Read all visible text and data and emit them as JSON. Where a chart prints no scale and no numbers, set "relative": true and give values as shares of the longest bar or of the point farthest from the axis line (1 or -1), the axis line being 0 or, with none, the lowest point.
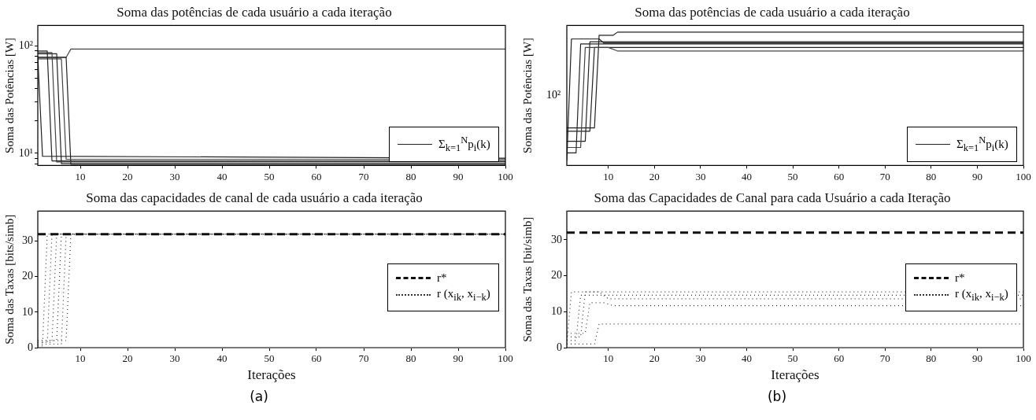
{
  "chart_data": [
    {
      "type": "line",
      "title": "Soma das potências de cada usuário a cada iteração",
      "ylabel": "Soma das Potências [W]",
      "xlim": [
        1,
        100
      ],
      "xticks": [
        10,
        20,
        30,
        40,
        50,
        60,
        70,
        80,
        90,
        100
      ],
      "ylim": [
        7.7,
        156
      ],
      "yticks": [
        {
          "value": 8,
          "label": null
        },
        {
          "value": 9,
          "label": null
        },
        {
          "value": 10,
          "label": "10¹"
        },
        {
          "value": 20,
          "label": null
        },
        {
          "value": 30,
          "label": null
        },
        {
          "value": 40,
          "label": null
        },
        {
          "value": 50,
          "label": null
        },
        {
          "value": 60,
          "label": null
        },
        {
          "value": 70,
          "label": null
        },
        {
          "value": 80,
          "label": null
        },
        {
          "value": 90,
          "label": null
        },
        {
          "value": 100,
          "label": "10²"
        }
      ],
      "log": true,
      "legend": "bottom right",
      "series": [
        {
          "name": "Σ$_{k=1}$$^{N}$p$_{i}$(k)",
          "color": "#222222",
          "x": [
            1,
            2,
            100
          ],
          "values": [
            81,
            9.4,
            9.0
          ]
        },
        {
          "color": "#222222",
          "x": [
            1,
            3,
            4,
            100
          ],
          "values": [
            90,
            90,
            8.5,
            8.5
          ]
        },
        {
          "color": "#444444",
          "x": [
            1,
            4,
            5,
            100
          ],
          "values": [
            87,
            87,
            8.3,
            8.3
          ]
        },
        {
          "color": "#222222",
          "x": [
            1,
            5,
            6,
            100
          ],
          "values": [
            85,
            85,
            8.0,
            8.0
          ]
        },
        {
          "color": "#444444",
          "x": [
            1,
            6,
            7,
            100
          ],
          "values": [
            76,
            76,
            8.8,
            8.8
          ]
        },
        {
          "color": "#222222",
          "x": [
            1,
            7,
            8,
            100
          ],
          "values": [
            78.6,
            78.6,
            7.9,
            7.9
          ]
        },
        {
          "color": "#444444",
          "x": [
            1,
            7,
            8,
            100
          ],
          "values": [
            78.6,
            78.6,
            94,
            94
          ]
        }
      ]
    },
    {
      "type": "line",
      "title": "Soma das potências de cada usuário a cada iteração",
      "ylabel": "Soma das Potências [W]",
      "xlim": [
        1,
        100
      ],
      "xticks": [
        10,
        20,
        30,
        40,
        50,
        60,
        70,
        80,
        90,
        100
      ],
      "relative": true,
      "legend": "bottom right",
      "annotations": [
        "10²"
      ],
      "series": [
        {
          "name": "Σ$_{k=1}$$^{N}$p$_{i}$(k)",
          "color": "#222222",
          "x": [
            1,
            2,
            8,
            9,
            100
          ],
          "values": [
            0.035,
            0.949,
            0.949,
            0.919,
            0.919
          ]
        },
        {
          "color": "#222222",
          "x": [
            1,
            3,
            4,
            100
          ],
          "values": [
            0.094,
            0.094,
            0.911,
            0.911
          ]
        },
        {
          "color": "#444444",
          "x": [
            1,
            4,
            5,
            10,
            12,
            100
          ],
          "values": [
            0.135,
            0.135,
            0.885,
            0.885,
            0.859,
            0.859
          ]
        },
        {
          "color": "#222222",
          "x": [
            1,
            5,
            6,
            100
          ],
          "values": [
            0.182,
            0.182,
            0.928,
            0.928
          ]
        },
        {
          "color": "#222222",
          "x": [
            1,
            6,
            7,
            100
          ],
          "values": [
            0.257,
            0.257,
            0.885,
            0.885
          ]
        },
        {
          "color": "#222222",
          "x": [
            1,
            7,
            8,
            11,
            12,
            100
          ],
          "values": [
            0.282,
            0.282,
            0.976,
            0.976,
            1,
            1
          ]
        }
      ]
    },
    {
      "type": "line",
      "title": "Soma das capacidades de canal de cada usuário a cada iteração",
      "xlabel": "Iterações",
      "ylabel": "Soma das Taxas [bits/simb]",
      "xlim": [
        1,
        100
      ],
      "xticks": [
        10,
        20,
        30,
        40,
        50,
        60,
        70,
        80,
        90,
        100
      ],
      "ylim": [
        0,
        38.5
      ],
      "yticks": [
        0,
        10,
        20,
        30
      ],
      "legend": "right",
      "annotations": [
        "(a)"
      ],
      "series": [
        {
          "name": "r*",
          "color": "#111111",
          "line_style": "dashed",
          "x": [
            1,
            100
          ],
          "values": [
            32,
            32
          ]
        },
        {
          "name": "r (x$_{ik}$, x$_{i−k}$)",
          "color": "#333333",
          "line_style": "dotted",
          "x": [
            1,
            2,
            3,
            100
          ],
          "values": [
            0.5,
            0.5,
            32,
            32
          ]
        },
        {
          "color": "#333333",
          "line_style": "dotted",
          "x": [
            1,
            3,
            4,
            100
          ],
          "values": [
            1,
            1,
            32,
            32
          ]
        },
        {
          "color": "#333333",
          "line_style": "dotted",
          "x": [
            1,
            4,
            5,
            100
          ],
          "values": [
            1.5,
            1.5,
            32,
            32
          ]
        },
        {
          "color": "#333333",
          "line_style": "dotted",
          "x": [
            1,
            5,
            6,
            100
          ],
          "values": [
            2,
            2,
            32,
            32
          ]
        },
        {
          "color": "#333333",
          "line_style": "dotted",
          "x": [
            1,
            6,
            7,
            100
          ],
          "values": [
            1,
            1,
            32,
            32
          ]
        },
        {
          "color": "#333333",
          "line_style": "dotted",
          "x": [
            1,
            7,
            8,
            100
          ],
          "values": [
            2,
            2,
            32,
            32
          ]
        }
      ]
    },
    {
      "type": "line",
      "title": "Soma das Capacidades de Canal para cada Usuário a cada Iteração",
      "xlabel": "Iterações",
      "ylabel": "Soma das Taxas [bit/simb]",
      "xlim": [
        1,
        100
      ],
      "xticks": [
        10,
        20,
        30,
        40,
        50,
        60,
        70,
        80,
        90,
        100
      ],
      "ylim": [
        0,
        38
      ],
      "yticks": [
        0,
        10,
        20,
        30
      ],
      "legend": "right",
      "annotations": [
        "(b)"
      ],
      "series": [
        {
          "name": "r*",
          "color": "#111111",
          "line_style": "dashed",
          "x": [
            1,
            100
          ],
          "values": [
            32,
            32
          ]
        },
        {
          "name": "r (x$_{ik}$, x$_{i−k}$)",
          "color": "#333333",
          "line_style": "dotted",
          "x": [
            1,
            2,
            100
          ],
          "values": [
            1,
            15.5,
            15.5
          ]
        },
        {
          "color": "#333333",
          "line_style": "dotted",
          "x": [
            1,
            3,
            4,
            100
          ],
          "values": [
            2,
            2,
            14.6,
            14.6
          ]
        },
        {
          "color": "#333333",
          "line_style": "dotted",
          "x": [
            1,
            4,
            5,
            8,
            10,
            100
          ],
          "values": [
            3,
            3,
            15.5,
            15.5,
            13.6,
            13.6
          ]
        },
        {
          "color": "#333333",
          "line_style": "dotted",
          "x": [
            1,
            5,
            6,
            9,
            11,
            100
          ],
          "values": [
            4,
            4,
            12.5,
            12.5,
            11.7,
            11.7
          ]
        },
        {
          "color": "#333333",
          "line_style": "dotted",
          "x": [
            1,
            7,
            8,
            100
          ],
          "values": [
            1,
            1,
            6.6,
            6.6
          ]
        }
      ]
    }
  ]
}
